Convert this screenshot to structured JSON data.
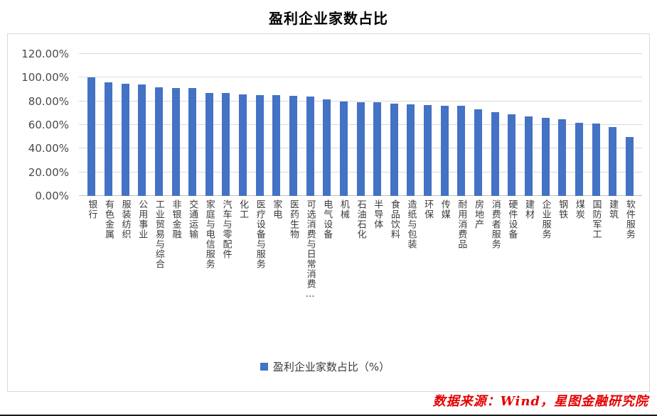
{
  "page": {
    "source_note": "数据来源：Wind，星图金融研究院"
  },
  "chart_data": {
    "type": "bar",
    "title": "盈利企业家数占比",
    "legend_label": "盈利企业家数占比（%）",
    "legend_position": "bottom",
    "grid": true,
    "bar_color": "#4472C4",
    "gridline_color": "#D9D9D9",
    "xlabel": "",
    "ylabel": "",
    "ylim": [
      0,
      120
    ],
    "ytick_step": 20,
    "ytick_labels": [
      "0.00%",
      "20.00%",
      "40.00%",
      "60.00%",
      "80.00%",
      "100.00%",
      "120.00%"
    ],
    "categories": [
      "银行",
      "有色金属",
      "服装纺织",
      "公用事业",
      "工业贸易与综合",
      "非银金融",
      "交通运输",
      "家庭与电信服务",
      "汽车与零配件",
      "化工",
      "医疗设备与服务",
      "家电",
      "医药生物",
      "可选消费与日常消费…",
      "电气设备",
      "机械",
      "石油石化",
      "半导体",
      "食品饮料",
      "造纸与包装",
      "环保",
      "传媒",
      "耐用消费品",
      "房地产",
      "消费者服务",
      "硬件设备",
      "建材",
      "企业服务",
      "钢铁",
      "煤炭",
      "国防军工",
      "建筑",
      "软件服务"
    ],
    "values": [
      100,
      96,
      95,
      94,
      92,
      91.5,
      91,
      87,
      87,
      86,
      85.5,
      85,
      84.5,
      84,
      81.5,
      80,
      79.5,
      79,
      78,
      77.5,
      77,
      76.5,
      76,
      73,
      71,
      69,
      67.5,
      66,
      65,
      62,
      61,
      58.5,
      50
    ]
  }
}
